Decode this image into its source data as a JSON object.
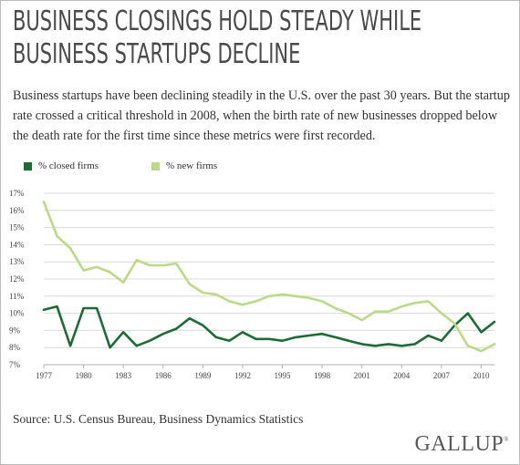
{
  "header": {
    "title_line1": "BUSINESS CLOSINGS HOLD STEADY WHILE",
    "title_line2": "BUSINESS STARTUPS DECLINE",
    "subtitle": "Business startups have been declining steadily in the U.S. over the past 30 years. But the startup rate crossed a critical threshold in 2008, when the birth rate of new businesses dropped below the death rate for the first time since these metrics were first recorded."
  },
  "footer": {
    "source": "Source: U.S. Census Bureau, Business Dynamics Statistics",
    "brand": "GALLUP",
    "brand_mark": "®"
  },
  "chart_data": {
    "type": "line",
    "x": [
      1977,
      1978,
      1979,
      1980,
      1981,
      1982,
      1983,
      1984,
      1985,
      1986,
      1987,
      1988,
      1989,
      1990,
      1991,
      1992,
      1993,
      1994,
      1995,
      1996,
      1997,
      1998,
      1999,
      2000,
      2001,
      2002,
      2003,
      2004,
      2005,
      2006,
      2007,
      2008,
      2009,
      2010,
      2011
    ],
    "series": [
      {
        "name": "% closed firms",
        "color": "#1e6b35",
        "values": [
          10.2,
          10.4,
          8.1,
          10.3,
          10.3,
          8.0,
          8.9,
          8.1,
          8.4,
          8.8,
          9.1,
          9.7,
          9.3,
          8.6,
          8.4,
          8.9,
          8.5,
          8.5,
          8.4,
          8.6,
          8.7,
          8.8,
          8.6,
          8.4,
          8.2,
          8.1,
          8.2,
          8.1,
          8.2,
          8.7,
          8.4,
          9.3,
          10.0,
          8.9,
          9.5
        ]
      },
      {
        "name": "% new firms",
        "color": "#bcd98a",
        "values": [
          16.5,
          14.5,
          13.8,
          12.5,
          12.7,
          12.4,
          11.8,
          13.1,
          12.8,
          12.8,
          12.9,
          11.7,
          11.2,
          11.1,
          10.7,
          10.5,
          10.7,
          11.0,
          11.1,
          11.0,
          10.9,
          10.7,
          10.3,
          10.0,
          9.6,
          10.1,
          10.1,
          10.4,
          10.6,
          10.7,
          10.0,
          9.4,
          8.1,
          7.8,
          8.2
        ]
      }
    ],
    "xticks": [
      "1977",
      "1980",
      "1983",
      "1986",
      "1989",
      "1992",
      "1995",
      "1998",
      "2001",
      "2004",
      "2007",
      "2010"
    ],
    "xtick_years": [
      1977,
      1980,
      1983,
      1986,
      1989,
      1992,
      1995,
      1998,
      2001,
      2004,
      2007,
      2010
    ],
    "yticks": [
      "7%",
      "8%",
      "9%",
      "10%",
      "11%",
      "12%",
      "13%",
      "14%",
      "15%",
      "16%",
      "17%"
    ],
    "ylim": [
      7,
      17
    ],
    "xlim": [
      1977,
      2011
    ],
    "grid": true,
    "legend_position": "top-left",
    "gridline_color": "#d9d9d9",
    "axis_color": "#b0b0b0"
  }
}
